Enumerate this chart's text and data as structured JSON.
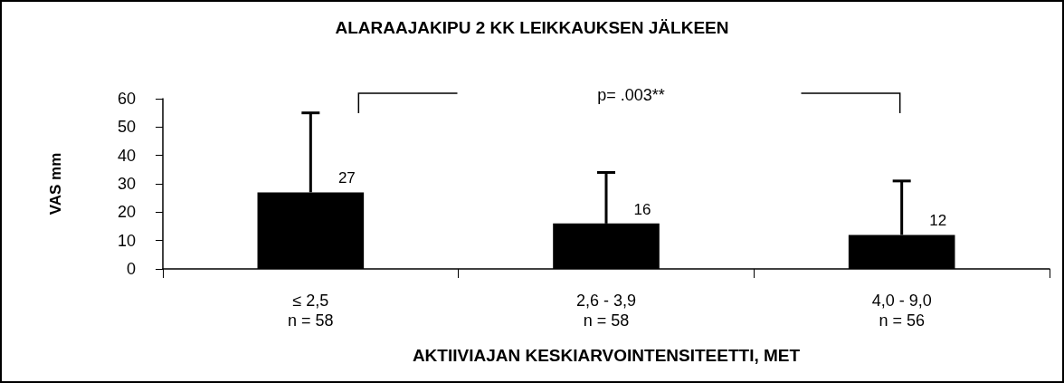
{
  "chart_data": {
    "type": "bar",
    "title": "ALARAAJAKIPU 2 KK LEIKKAUKSEN JÄLKEEN",
    "xlabel": "AKTIIVIAJAN KESKIARVOINTENSITEETTI, MET",
    "ylabel": "VAS mm",
    "categories": [
      "≤ 2,5\nn = 58",
      "2,6 - 3,9\nn = 58",
      "4,0 - 9,0\nn = 56"
    ],
    "values": [
      27,
      16,
      12
    ],
    "color": "#000000",
    "errors": [
      [
        27,
        55
      ],
      [
        16,
        34
      ],
      [
        12,
        31
      ]
    ],
    "data_labels": true,
    "ylim": [
      0,
      60
    ],
    "yticks": [
      0,
      10,
      20,
      30,
      40,
      50,
      60
    ],
    "annotations": [
      "p= .003**"
    ],
    "grid": false
  }
}
